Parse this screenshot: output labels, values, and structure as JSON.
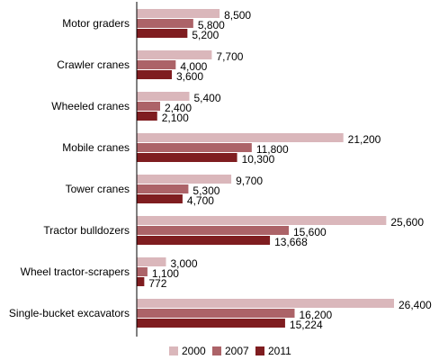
{
  "chart_data": {
    "type": "bar",
    "orientation": "horizontal",
    "categories": [
      "Motor graders",
      "Crawler cranes",
      "Wheeled cranes",
      "Mobile cranes",
      "Tower cranes",
      "Tractor bulldozers",
      "Wheel tractor-scrapers",
      "Single-bucket excavators"
    ],
    "series": [
      {
        "name": "2000",
        "color": "#dab7bb",
        "values": [
          8500,
          7700,
          5400,
          21200,
          9700,
          25600,
          3000,
          26400
        ],
        "labels": [
          "8,500",
          "7,700",
          "5,400",
          "21,200",
          "9,700",
          "25,600",
          "3,000",
          "26,400"
        ]
      },
      {
        "name": "2007",
        "color": "#ac6368",
        "values": [
          5800,
          4000,
          2400,
          11800,
          5300,
          15600,
          1100,
          16200
        ],
        "labels": [
          "5,800",
          "4,000",
          "2,400",
          "11,800",
          "5,300",
          "15,600",
          "1,100",
          "16,200"
        ]
      },
      {
        "name": "2011",
        "color": "#7f1d20",
        "values": [
          5200,
          3600,
          2100,
          10300,
          4700,
          13668,
          772,
          15224
        ],
        "labels": [
          "5,200",
          "3,600",
          "2,100",
          "10,300",
          "4,700",
          "13,668",
          "772",
          "15,224"
        ]
      }
    ],
    "xlim": [
      0,
      30000
    ],
    "grid": false,
    "legend_position": "bottom"
  }
}
